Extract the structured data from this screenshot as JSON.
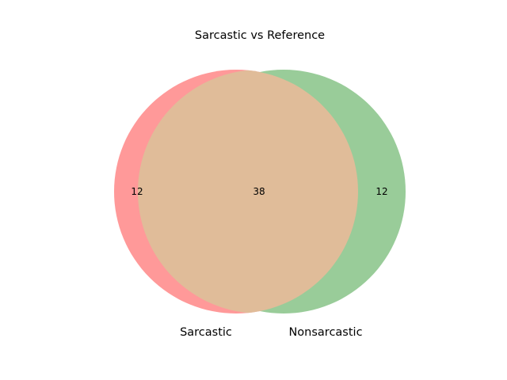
{
  "title": "Sarcastic vs Reference",
  "sets": [
    {
      "name": "Sarcastic",
      "only_count": "12",
      "color": "#ff9999"
    },
    {
      "name": "Nonsarcastic",
      "only_count": "12",
      "color": "#99cc99"
    }
  ],
  "intersection": {
    "count": "38",
    "color": "#e0bc99"
  }
}
